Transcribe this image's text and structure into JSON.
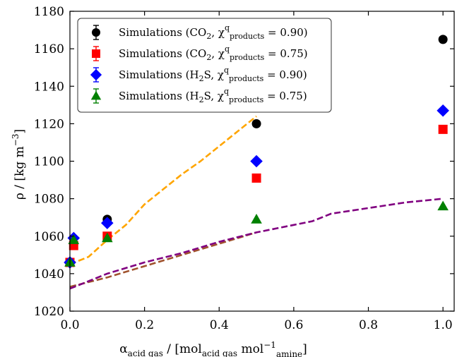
{
  "chart_data": {
    "type": "scatter",
    "xlabel": "α_acid gas / [mol_acid gas mol_amine^−1]",
    "ylabel": "ρ / [kg m^−3]",
    "xlim": [
      0.0,
      1.03
    ],
    "ylim": [
      1020,
      1180
    ],
    "xticks": [
      "0.0",
      "0.2",
      "0.4",
      "0.6",
      "0.8",
      "1.0"
    ],
    "xtick_values": [
      0.0,
      0.2,
      0.4,
      0.6,
      0.8,
      1.0
    ],
    "yticks": [
      "1020",
      "1040",
      "1060",
      "1080",
      "1100",
      "1120",
      "1140",
      "1160",
      "1180"
    ],
    "ytick_values": [
      1020,
      1040,
      1060,
      1080,
      1100,
      1120,
      1140,
      1160,
      1180
    ],
    "grid": false,
    "legend_position": "top-left",
    "series": [
      {
        "name": "Simulations (CO₂, χ^q_products = 0.90)",
        "legend": {
          "main": "Simulations (CO",
          "sub1": "2",
          "mid": ", χ",
          "sup": "q",
          "sub2": "products",
          "tail": " = 0.90)"
        },
        "marker": "circle",
        "color": "#000000",
        "x": [
          0.0,
          0.01,
          0.1,
          0.5,
          1.0
        ],
        "y": [
          1046,
          1056,
          1069,
          1120,
          1165
        ]
      },
      {
        "name": "Simulations (CO₂, χ^q_products = 0.75)",
        "legend": {
          "main": "Simulations (CO",
          "sub1": "2",
          "mid": ", χ",
          "sup": "q",
          "sub2": "products",
          "tail": " = 0.75)"
        },
        "marker": "square",
        "color": "#ff0000",
        "x": [
          0.0,
          0.01,
          0.1,
          0.5,
          1.0
        ],
        "y": [
          1046,
          1055,
          1060,
          1091,
          1117
        ]
      },
      {
        "name": "Simulations (H₂S, χ^q_products = 0.90)",
        "legend": {
          "main": "Simulations (H",
          "sub1": "2",
          "mid": "S, χ",
          "sup": "q",
          "sub2": "products",
          "tail": " = 0.90)"
        },
        "marker": "diamond",
        "color": "#0000ff",
        "x": [
          0.0,
          0.01,
          0.1,
          0.5,
          1.0
        ],
        "y": [
          1046,
          1059,
          1067,
          1100,
          1127
        ]
      },
      {
        "name": "Simulations (H₂S, χ^q_products = 0.75)",
        "legend": {
          "main": "Simulations (H",
          "sub1": "2",
          "mid": "S, χ",
          "sup": "q",
          "sub2": "products",
          "tail": " = 0.75)"
        },
        "marker": "triangle",
        "color": "#008000",
        "x": [
          0.0,
          0.01,
          0.1,
          0.5,
          1.0
        ],
        "y": [
          1046,
          1058,
          1059,
          1069,
          1076
        ]
      }
    ],
    "lines": [
      {
        "color": "#ffa500",
        "dash": "dashed",
        "x": [
          0.0,
          0.05,
          0.1,
          0.15,
          0.2,
          0.25,
          0.3,
          0.35,
          0.4,
          0.45,
          0.5
        ],
        "y": [
          1045,
          1049,
          1058,
          1066,
          1077,
          1085,
          1093,
          1100,
          1108,
          1116,
          1124
        ]
      },
      {
        "color": "#a0522d",
        "dash": "dashed",
        "x": [
          0.0,
          0.1,
          0.2,
          0.3,
          0.4,
          0.5
        ],
        "y": [
          1033,
          1038,
          1044,
          1050,
          1056,
          1062
        ]
      },
      {
        "color": "#800080",
        "dash": "dashed",
        "x": [
          0.0,
          0.1,
          0.2,
          0.3,
          0.35,
          0.4,
          0.5,
          0.6,
          0.65,
          0.7,
          0.8,
          0.9,
          0.95,
          1.0
        ],
        "y": [
          1032,
          1040,
          1046,
          1051,
          1054,
          1057,
          1062,
          1066,
          1068,
          1072,
          1075,
          1078,
          1079,
          1080
        ]
      }
    ]
  }
}
